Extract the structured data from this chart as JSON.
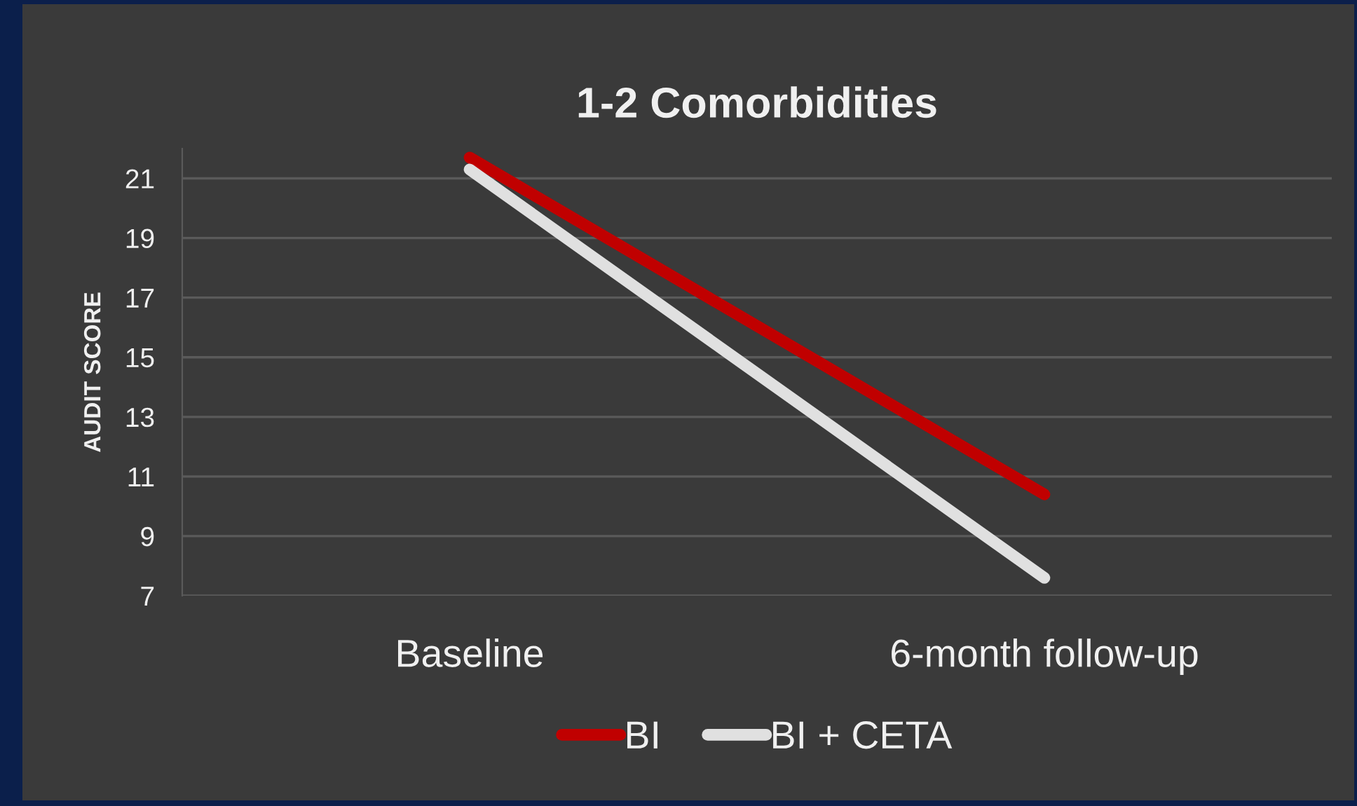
{
  "chart_data": {
    "type": "line",
    "title": "1-2 Comorbidities",
    "ylabel": "AUDIT SCORE",
    "categories": [
      "Baseline",
      "6-month follow-up"
    ],
    "series": [
      {
        "name": "BI",
        "color": "#c00000",
        "values": [
          21.7,
          10.4
        ]
      },
      {
        "name": "BI + CETA",
        "color": "#e0e0e0",
        "values": [
          21.3,
          7.6
        ]
      }
    ],
    "ylim": [
      7,
      22
    ],
    "yticks": [
      7,
      9,
      11,
      13,
      15,
      17,
      19,
      21
    ],
    "grid": "y",
    "legend": "bottom",
    "marker": "none",
    "line_style": "solid"
  }
}
